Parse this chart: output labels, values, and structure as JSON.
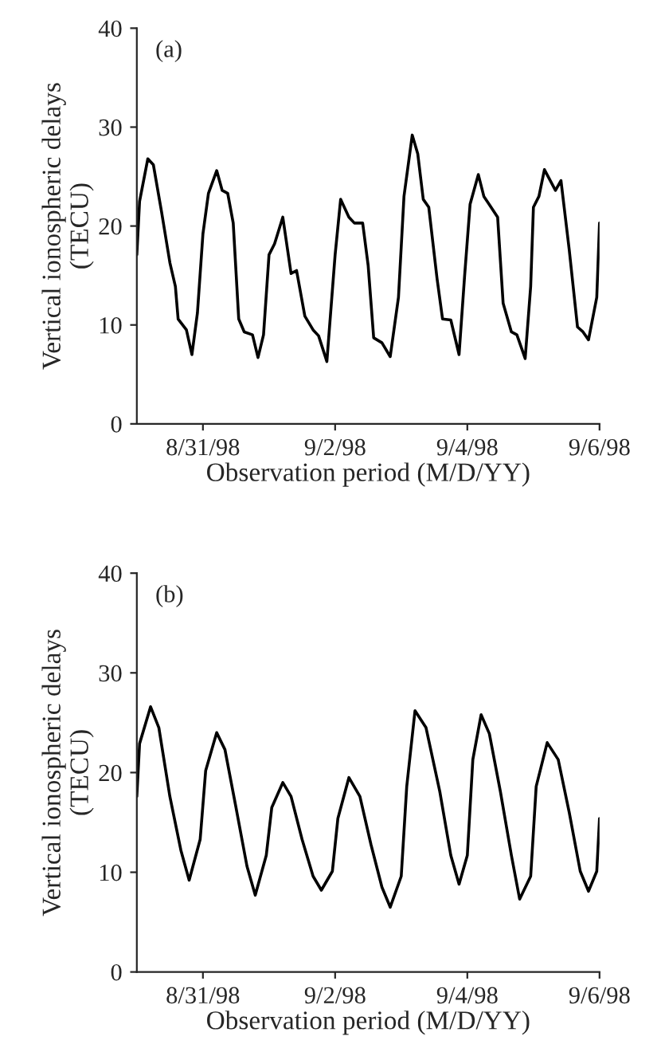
{
  "chart_data": [
    {
      "type": "line",
      "xlabel": "Observation period (M/D/YY)",
      "ylabel": "Vertical ionospheric delays\n(TECU)",
      "annotations": [
        "(a)"
      ],
      "xlim": [
        "1998-08-30",
        "1998-09-06"
      ],
      "ylim": [
        0,
        40
      ],
      "yticks": [
        0,
        10,
        20,
        30,
        40
      ],
      "xticks": [
        {
          "value": "1998-08-31",
          "label": "8/31/98"
        },
        {
          "value": "1998-09-02",
          "label": "9/2/98"
        },
        {
          "value": "1998-09-04",
          "label": "9/4/98"
        },
        {
          "value": "1998-09-06",
          "label": "9/6/98"
        }
      ],
      "grid": false,
      "legend": false,
      "series": [
        {
          "color": "#000000",
          "x": [
            "1998-08-30T00:00",
            "1998-08-30T01:00",
            "1998-08-30T04:00",
            "1998-08-30T06:00",
            "1998-08-30T09:00",
            "1998-08-30T12:00",
            "1998-08-30T14:00",
            "1998-08-30T15:00",
            "1998-08-30T18:00",
            "1998-08-30T20:00",
            "1998-08-30T22:00",
            "1998-08-31T00:00",
            "1998-08-31T02:00",
            "1998-08-31T05:00",
            "1998-08-31T07:00",
            "1998-08-31T09:00",
            "1998-08-31T11:00",
            "1998-08-31T13:00",
            "1998-08-31T15:00",
            "1998-08-31T18:00",
            "1998-08-31T20:00",
            "1998-08-31T22:00",
            "1998-09-01T00:00",
            "1998-09-01T02:00",
            "1998-09-01T05:00",
            "1998-09-01T08:00",
            "1998-09-01T10:00",
            "1998-09-01T13:00",
            "1998-09-01T16:00",
            "1998-09-01T18:00",
            "1998-09-01T21:00",
            "1998-09-02T00:00",
            "1998-09-02T02:00",
            "1998-09-02T05:00",
            "1998-09-02T07:00",
            "1998-09-02T10:00",
            "1998-09-02T12:00",
            "1998-09-02T14:00",
            "1998-09-02T17:00",
            "1998-09-02T20:00",
            "1998-09-02T23:00",
            "1998-09-03T01:00",
            "1998-09-03T04:00",
            "1998-09-03T06:00",
            "1998-09-03T08:00",
            "1998-09-03T10:00",
            "1998-09-03T13:00",
            "1998-09-03T15:00",
            "1998-09-03T18:00",
            "1998-09-03T21:00",
            "1998-09-03T23:00",
            "1998-09-04T01:00",
            "1998-09-04T04:00",
            "1998-09-04T06:00",
            "1998-09-04T11:00",
            "1998-09-04T13:00",
            "1998-09-04T16:00",
            "1998-09-04T18:00",
            "1998-09-04T21:00",
            "1998-09-04T23:00",
            "1998-09-05T00:00",
            "1998-09-05T02:00",
            "1998-09-05T04:00",
            "1998-09-05T08:00",
            "1998-09-05T10:00",
            "1998-09-05T13:00",
            "1998-09-05T16:00",
            "1998-09-05T18:00",
            "1998-09-05T20:00",
            "1998-09-05T23:00",
            "1998-09-06T00:00"
          ],
          "values": [
            17.1,
            22.5,
            26.8,
            26.2,
            21.4,
            16.3,
            13.9,
            10.6,
            9.5,
            7.0,
            11.2,
            19.2,
            23.3,
            25.6,
            23.6,
            23.3,
            20.3,
            10.6,
            9.3,
            9.0,
            6.7,
            9.0,
            17.1,
            18.2,
            20.9,
            15.2,
            15.5,
            10.9,
            9.5,
            8.9,
            6.3,
            17.1,
            22.7,
            20.9,
            20.3,
            20.3,
            16.0,
            8.7,
            8.2,
            6.8,
            12.8,
            23.0,
            29.2,
            27.3,
            22.7,
            21.9,
            14.7,
            10.6,
            10.5,
            7.0,
            14.9,
            22.2,
            25.2,
            23.0,
            20.9,
            12.2,
            9.3,
            9.0,
            6.6,
            13.9,
            21.9,
            23.0,
            25.7,
            23.6,
            24.6,
            17.6,
            9.8,
            9.3,
            8.5,
            12.8,
            20.3
          ]
        }
      ]
    },
    {
      "type": "line",
      "xlabel": "Observation period (M/D/YY)",
      "ylabel": "Vertical ionospheric delays\n(TECU)",
      "annotations": [
        "(b)"
      ],
      "xlim": [
        "1998-08-30",
        "1998-09-06"
      ],
      "ylim": [
        0,
        40
      ],
      "yticks": [
        0,
        10,
        20,
        30,
        40
      ],
      "xticks": [
        {
          "value": "1998-08-31",
          "label": "8/31/98"
        },
        {
          "value": "1998-09-02",
          "label": "9/2/98"
        },
        {
          "value": "1998-09-04",
          "label": "9/4/98"
        },
        {
          "value": "1998-09-06",
          "label": "9/6/98"
        }
      ],
      "grid": false,
      "legend": false,
      "series": [
        {
          "color": "#000000",
          "x": [
            "1998-08-30T00:00",
            "1998-08-30T01:00",
            "1998-08-30T05:00",
            "1998-08-30T08:00",
            "1998-08-30T12:00",
            "1998-08-30T16:00",
            "1998-08-30T19:00",
            "1998-08-30T23:00",
            "1998-08-31T01:00",
            "1998-08-31T05:00",
            "1998-08-31T08:00",
            "1998-08-31T12:00",
            "1998-08-31T16:00",
            "1998-08-31T19:00",
            "1998-08-31T23:00",
            "1998-09-01T01:00",
            "1998-09-01T05:00",
            "1998-09-01T08:00",
            "1998-09-01T12:00",
            "1998-09-01T16:00",
            "1998-09-01T19:00",
            "1998-09-01T23:00",
            "1998-09-02T01:00",
            "1998-09-02T05:00",
            "1998-09-02T09:00",
            "1998-09-02T13:00",
            "1998-09-02T17:00",
            "1998-09-02T20:00",
            "1998-09-03T00:00",
            "1998-09-03T02:00",
            "1998-09-03T05:00",
            "1998-09-03T09:00",
            "1998-09-03T14:00",
            "1998-09-03T18:00",
            "1998-09-03T21:00",
            "1998-09-04T00:00",
            "1998-09-04T02:00",
            "1998-09-04T05:00",
            "1998-09-04T08:00",
            "1998-09-04T12:00",
            "1998-09-04T16:00",
            "1998-09-04T19:00",
            "1998-09-04T23:00",
            "1998-09-05T01:00",
            "1998-09-05T05:00",
            "1998-09-05T09:00",
            "1998-09-05T13:00",
            "1998-09-05T17:00",
            "1998-09-05T20:00",
            "1998-09-05T23:00",
            "1998-09-06T00:00"
          ],
          "values": [
            17.6,
            22.9,
            26.6,
            24.5,
            17.6,
            12.2,
            9.2,
            13.3,
            20.2,
            24.0,
            22.3,
            16.5,
            10.6,
            7.7,
            11.7,
            16.5,
            19.0,
            17.6,
            13.3,
            9.6,
            8.2,
            10.1,
            15.4,
            19.5,
            17.6,
            12.8,
            8.5,
            6.5,
            9.6,
            18.6,
            26.2,
            24.5,
            18.1,
            11.7,
            8.8,
            11.7,
            21.3,
            25.8,
            23.9,
            18.1,
            11.7,
            7.3,
            9.6,
            18.6,
            23.0,
            21.3,
            16.0,
            10.1,
            8.1,
            10.1,
            15.4
          ]
        }
      ]
    }
  ]
}
